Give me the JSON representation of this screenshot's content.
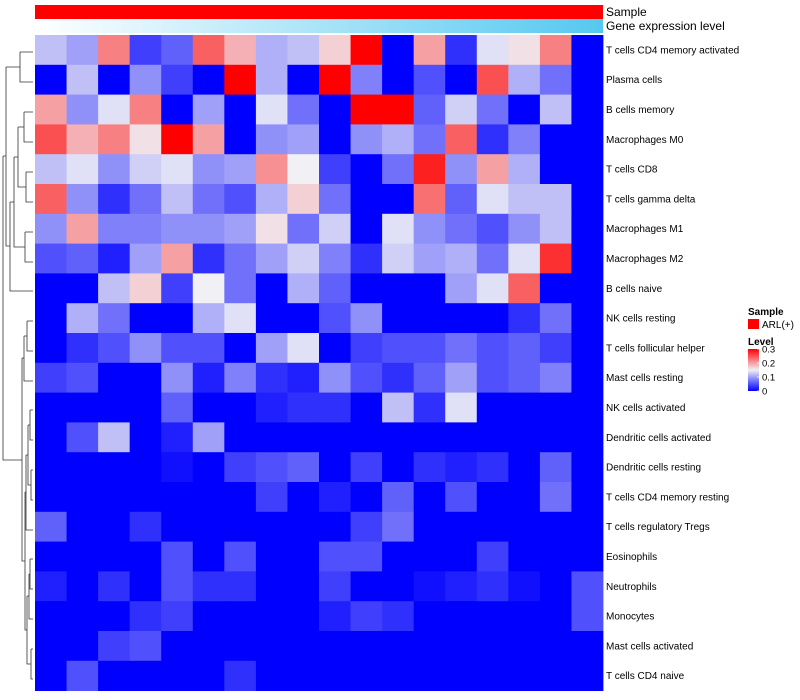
{
  "chart_data": {
    "type": "heatmap",
    "title": "",
    "annotations": [
      {
        "name": "Sample",
        "kind": "categorical",
        "value_label": "ARL(+)",
        "color": "#ff0000"
      },
      {
        "name": "Gene expression level",
        "kind": "gradient",
        "color_low": "#ffffff",
        "color_high": "#55c8f0"
      }
    ],
    "row_labels": [
      "T cells CD4 memory activated",
      "Plasma cells",
      "B cells memory",
      "Macrophages M0",
      "T cells CD8",
      "T cells gamma delta",
      "Macrophages M1",
      "Macrophages M2",
      "B cells naive",
      "NK cells resting",
      "T cells follicular helper",
      "Mast cells resting",
      "NK cells activated",
      "Dendritic cells activated",
      "Dendritic cells resting",
      "T cells CD4 memory resting",
      "T cells regulatory  Tregs",
      "Eosinophils",
      "Neutrophils",
      "Monocytes",
      "Mast cells activated",
      "T cells CD4 naive"
    ],
    "n_columns": 18,
    "values": [
      [
        0.12,
        0.1,
        0.22,
        0.04,
        0.06,
        0.24,
        0.19,
        0.11,
        0.12,
        0.17,
        0.3,
        0.0,
        0.2,
        0.03,
        0.14,
        0.16,
        0.22,
        0.0
      ],
      [
        0.0,
        0.12,
        0.0,
        0.09,
        0.04,
        0.0,
        0.3,
        0.11,
        0.0,
        0.3,
        0.08,
        0.0,
        0.05,
        0.0,
        0.25,
        0.11,
        0.07,
        0.0
      ],
      [
        0.2,
        0.09,
        0.14,
        0.22,
        0.0,
        0.1,
        0.0,
        0.14,
        0.07,
        0.0,
        0.3,
        0.3,
        0.06,
        0.13,
        0.07,
        0.0,
        0.12,
        0.0
      ],
      [
        0.25,
        0.19,
        0.22,
        0.16,
        0.3,
        0.2,
        0.0,
        0.09,
        0.1,
        0.0,
        0.09,
        0.11,
        0.07,
        0.24,
        0.03,
        0.08,
        0.0,
        0.0
      ],
      [
        0.12,
        0.14,
        0.09,
        0.13,
        0.14,
        0.09,
        0.1,
        0.21,
        0.15,
        0.04,
        0.0,
        0.07,
        0.28,
        0.09,
        0.2,
        0.11,
        0.0,
        0.0
      ],
      [
        0.24,
        0.09,
        0.03,
        0.07,
        0.12,
        0.07,
        0.05,
        0.11,
        0.17,
        0.07,
        0.0,
        0.0,
        0.23,
        0.06,
        0.14,
        0.12,
        0.12,
        0.0
      ],
      [
        0.09,
        0.2,
        0.08,
        0.08,
        0.09,
        0.09,
        0.1,
        0.16,
        0.07,
        0.13,
        0.0,
        0.14,
        0.09,
        0.07,
        0.05,
        0.09,
        0.12,
        0.0
      ],
      [
        0.05,
        0.06,
        0.02,
        0.1,
        0.2,
        0.03,
        0.07,
        0.1,
        0.13,
        0.08,
        0.03,
        0.13,
        0.1,
        0.11,
        0.07,
        0.14,
        0.27,
        0.0
      ],
      [
        0.0,
        0.0,
        0.12,
        0.17,
        0.04,
        0.15,
        0.07,
        0.0,
        0.11,
        0.06,
        0.0,
        0.0,
        0.0,
        0.1,
        0.14,
        0.24,
        0.0,
        0.0
      ],
      [
        0.0,
        0.11,
        0.07,
        0.0,
        0.0,
        0.11,
        0.14,
        0.0,
        0.0,
        0.05,
        0.09,
        0.0,
        0.0,
        0.0,
        0.0,
        0.03,
        0.07,
        0.0
      ],
      [
        0.0,
        0.03,
        0.05,
        0.09,
        0.05,
        0.05,
        0.0,
        0.1,
        0.14,
        0.0,
        0.04,
        0.05,
        0.05,
        0.07,
        0.05,
        0.06,
        0.04,
        0.0
      ],
      [
        0.04,
        0.05,
        0.0,
        0.0,
        0.09,
        0.02,
        0.08,
        0.03,
        0.02,
        0.09,
        0.05,
        0.03,
        0.06,
        0.1,
        0.05,
        0.06,
        0.08,
        0.0
      ],
      [
        0.0,
        0.0,
        0.0,
        0.0,
        0.06,
        0.0,
        0.0,
        0.02,
        0.03,
        0.03,
        0.0,
        0.12,
        0.03,
        0.14,
        0.0,
        0.0,
        0.0,
        0.0
      ],
      [
        0.0,
        0.05,
        0.12,
        0.0,
        0.02,
        0.1,
        0.0,
        0.0,
        0.0,
        0.0,
        0.0,
        0.0,
        0.0,
        0.0,
        0.0,
        0.0,
        0.0,
        0.0
      ],
      [
        0.0,
        0.0,
        0.0,
        0.0,
        0.01,
        0.0,
        0.04,
        0.05,
        0.06,
        0.0,
        0.04,
        0.0,
        0.03,
        0.02,
        0.03,
        0.0,
        0.06,
        0.0
      ],
      [
        0.0,
        0.0,
        0.0,
        0.0,
        0.0,
        0.0,
        0.0,
        0.04,
        0.0,
        0.02,
        0.0,
        0.06,
        0.0,
        0.05,
        0.0,
        0.0,
        0.07,
        0.0
      ],
      [
        0.06,
        0.0,
        0.0,
        0.03,
        0.0,
        0.0,
        0.0,
        0.0,
        0.0,
        0.0,
        0.04,
        0.07,
        0.0,
        0.0,
        0.0,
        0.0,
        0.0,
        0.0
      ],
      [
        0.0,
        0.0,
        0.0,
        0.0,
        0.05,
        0.0,
        0.05,
        0.0,
        0.0,
        0.05,
        0.05,
        0.0,
        0.0,
        0.0,
        0.04,
        0.0,
        0.0,
        0.0
      ],
      [
        0.02,
        0.0,
        0.03,
        0.0,
        0.05,
        0.03,
        0.03,
        0.0,
        0.0,
        0.04,
        0.0,
        0.0,
        0.01,
        0.02,
        0.03,
        0.01,
        0.0,
        0.05
      ],
      [
        0.0,
        0.0,
        0.0,
        0.03,
        0.04,
        0.0,
        0.0,
        0.0,
        0.0,
        0.02,
        0.04,
        0.03,
        0.0,
        0.0,
        0.0,
        0.0,
        0.0,
        0.05
      ],
      [
        0.0,
        0.0,
        0.04,
        0.05,
        0.0,
        0.0,
        0.0,
        0.0,
        0.0,
        0.0,
        0.0,
        0.0,
        0.0,
        0.0,
        0.0,
        0.0,
        0.0,
        0.0
      ],
      [
        0.0,
        0.05,
        0.0,
        0.0,
        0.0,
        0.0,
        0.03,
        0.0,
        0.0,
        0.0,
        0.0,
        0.0,
        0.0,
        0.0,
        0.0,
        0.0,
        0.0,
        0.0
      ]
    ],
    "color_scale": {
      "min": 0,
      "mid": 0.15,
      "max": 0.3,
      "color_low": "#0000ff",
      "color_mid": "#f0f0f5",
      "color_high": "#ff0000"
    },
    "legend": {
      "sample_title": "Sample",
      "sample_entry": "ARL(+)",
      "level_title": "Level",
      "level_ticks": [
        "0.3",
        "0.2",
        "0.1",
        "0"
      ],
      "level_tick_values": [
        0.3,
        0.2,
        0.1,
        0
      ]
    },
    "dendrogram_side": "left"
  }
}
